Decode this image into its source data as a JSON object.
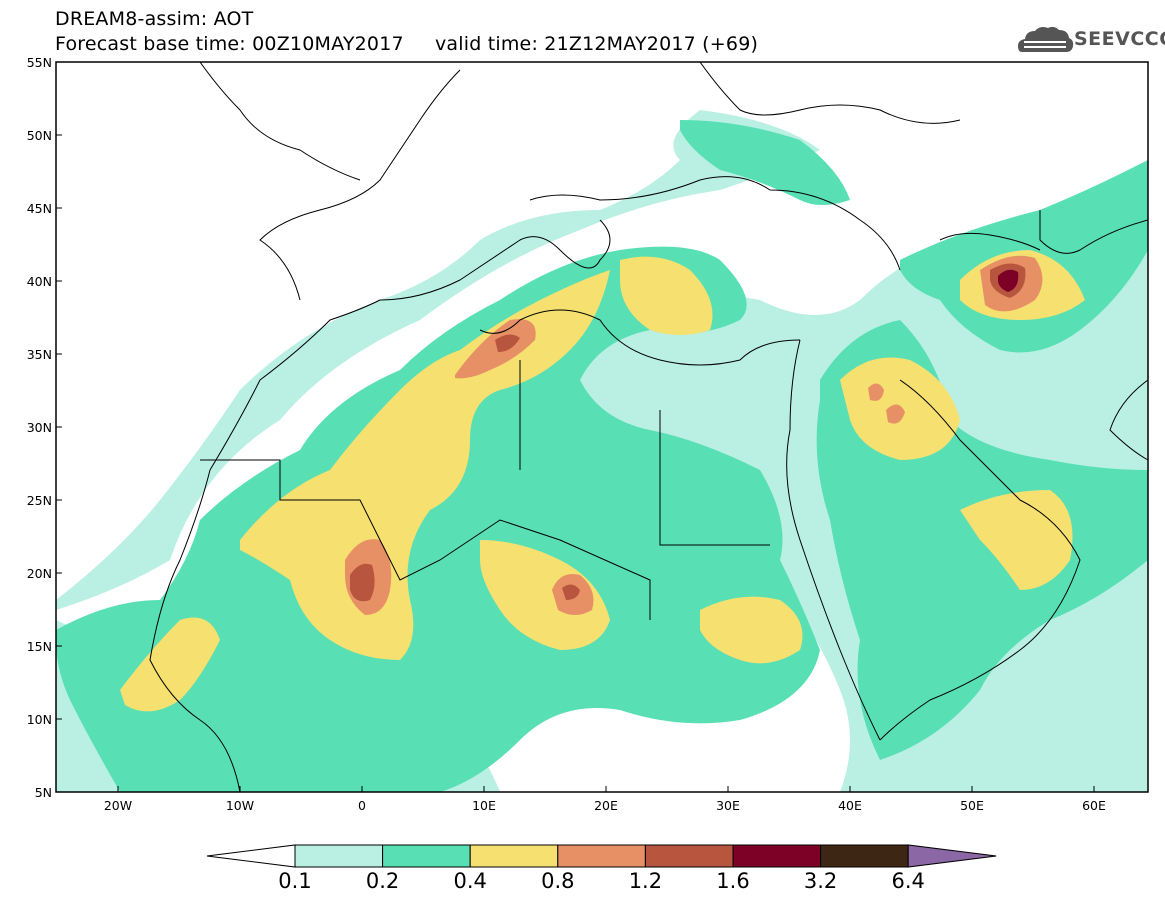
{
  "header": {
    "line1": "DREAM8-assim: AOT",
    "line2": "Forecast base time: 00Z10MAY2017     valid time: 21Z12MAY2017 (+69)"
  },
  "logo": {
    "text": "SEEVCCC",
    "icon": "cloud-icon"
  },
  "map": {
    "lat_labels": [
      "55N",
      "50N",
      "45N",
      "40N",
      "35N",
      "30N",
      "25N",
      "20N",
      "15N",
      "10N",
      "5N"
    ],
    "lon_labels": [
      "20W",
      "10W",
      "0",
      "10E",
      "20E",
      "30E",
      "40E",
      "50E",
      "60E"
    ],
    "field_colors": {
      "c1": "#b9f0e3",
      "c2": "#58dfb4",
      "c3": "#f5e070",
      "c4": "#e89065",
      "c5": "#b8553f",
      "c6": "#7d0026",
      "c7": "#3d2614",
      "c8": "#8b67a6"
    }
  },
  "colorbar": {
    "labels": [
      "0.1",
      "0.2",
      "0.4",
      "0.8",
      "1.2",
      "1.6",
      "3.2",
      "6.4"
    ],
    "colors": [
      "#b9f0e3",
      "#58dfb4",
      "#f5e070",
      "#e89065",
      "#b8553f",
      "#7d0026",
      "#3d2614"
    ],
    "low_extend_color": "#ffffff",
    "high_extend_color": "#8b67a6"
  }
}
